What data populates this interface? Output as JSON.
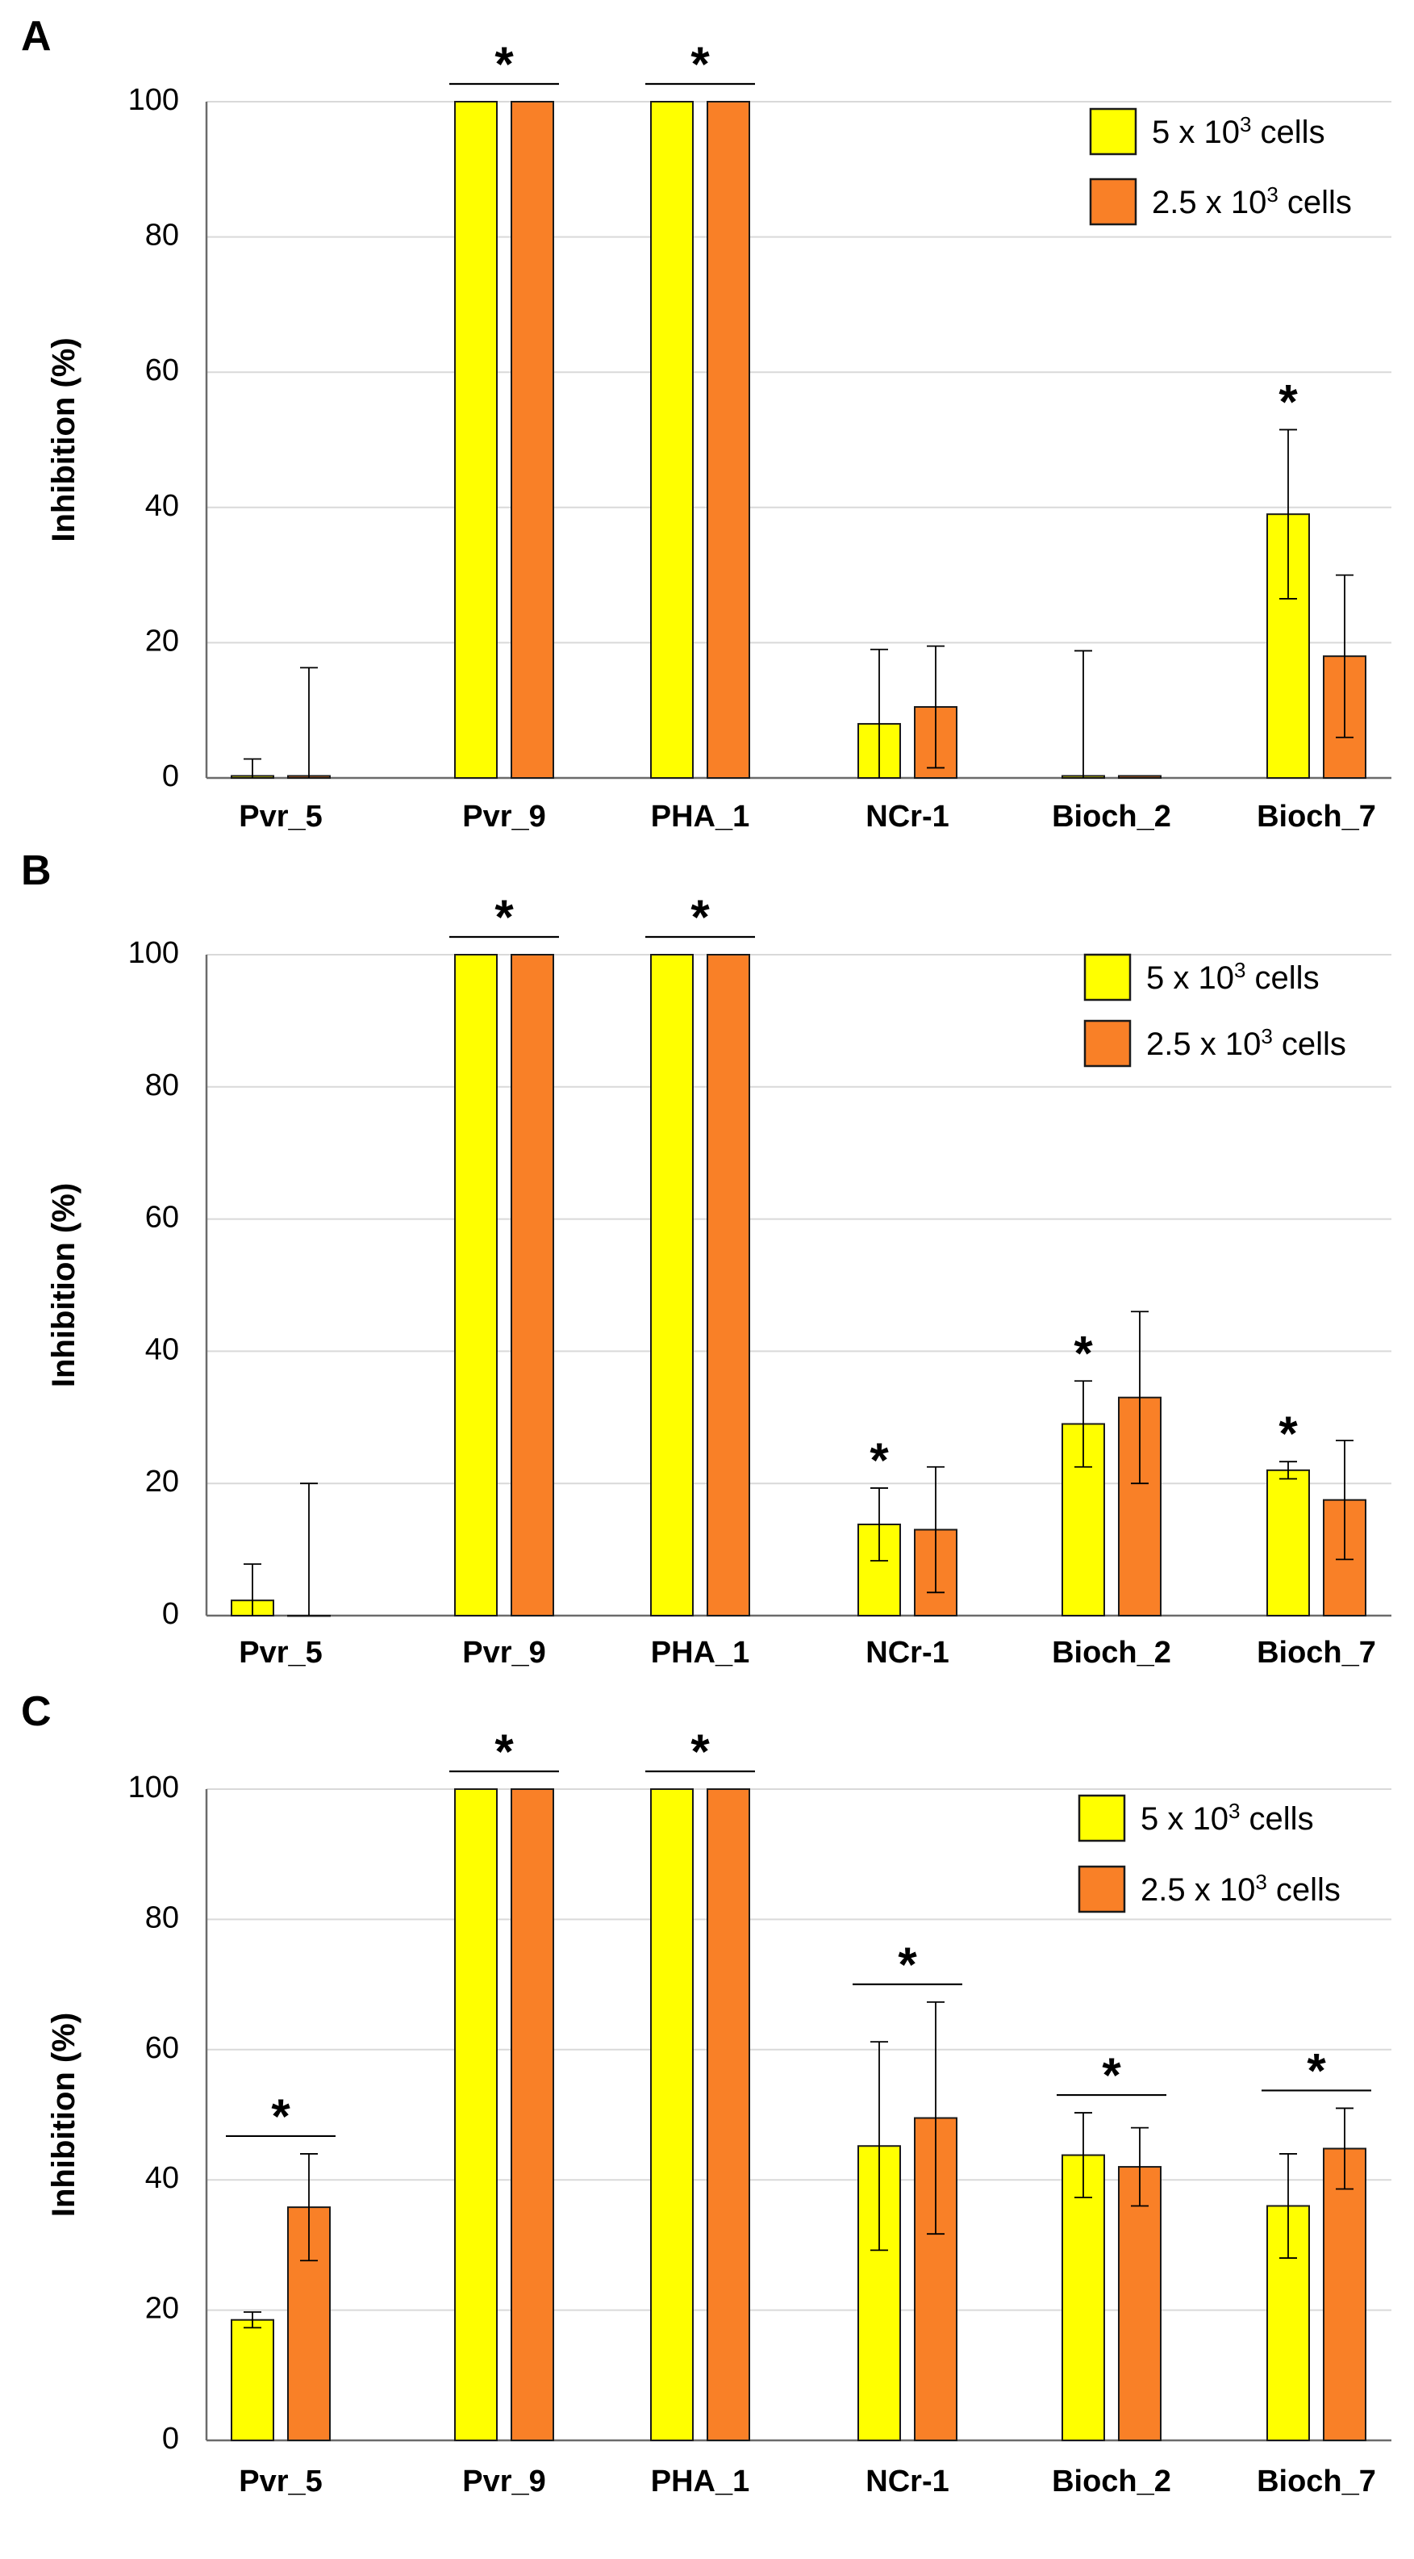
{
  "colors": {
    "series_1": "#ffff00",
    "series_2": "#f98027",
    "bar_outline": "#1a1a1a",
    "error_bar": "#000000",
    "grid": "#d9d9d9"
  },
  "significance_symbol": "*",
  "chart_data": [
    {
      "type": "bar",
      "panel": "A",
      "ylabel": "Inhibition (%)",
      "ylim": [
        0,
        100
      ],
      "yticks": [
        0,
        20,
        40,
        60,
        80,
        100
      ],
      "grid": true,
      "legend_position": "top-right",
      "categories": [
        "Pvr_5",
        "Pvr_9",
        "PHA_1",
        "NCr-1",
        "Bioch_2",
        "Bioch_7"
      ],
      "series": [
        {
          "name": "5 x 10³ cells",
          "values": [
            0.3,
            100,
            100,
            8,
            0.3,
            39
          ],
          "error": [
            2.5,
            0,
            0,
            11,
            18.5,
            12.5
          ]
        },
        {
          "name": "2.5 x 10³ cells",
          "values": [
            0.3,
            100,
            100,
            10.5,
            0.3,
            18
          ],
          "error": [
            16,
            0,
            0,
            9,
            0,
            12
          ]
        }
      ],
      "significance": [
        {
          "category": "Pvr_9",
          "span": "both"
        },
        {
          "category": "PHA_1",
          "span": "both"
        },
        {
          "category": "Bioch_7",
          "span": "series_1"
        }
      ]
    },
    {
      "type": "bar",
      "panel": "B",
      "ylabel": "Inhibition (%)",
      "ylim": [
        0,
        100
      ],
      "yticks": [
        0,
        20,
        40,
        60,
        80,
        100
      ],
      "grid": true,
      "legend_position": "top-right",
      "categories": [
        "Pvr_5",
        "Pvr_9",
        "PHA_1",
        "NCr-1",
        "Bioch_2",
        "Bioch_7"
      ],
      "series": [
        {
          "name": "5 x 10³ cells",
          "values": [
            2.3,
            100,
            100,
            13.8,
            29,
            22
          ],
          "error": [
            5.5,
            0,
            0,
            5.5,
            6.5,
            1.3
          ]
        },
        {
          "name": "2.5 x 10³ cells",
          "values": [
            0,
            100,
            100,
            13,
            33,
            17.5
          ],
          "error": [
            20,
            0,
            0,
            9.5,
            13,
            9
          ]
        }
      ],
      "significance": [
        {
          "category": "Pvr_9",
          "span": "both"
        },
        {
          "category": "PHA_1",
          "span": "both"
        },
        {
          "category": "NCr-1",
          "span": "series_1"
        },
        {
          "category": "Bioch_2",
          "span": "series_1"
        },
        {
          "category": "Bioch_7",
          "span": "series_1"
        }
      ]
    },
    {
      "type": "bar",
      "panel": "C",
      "ylabel": "Inhibition (%)",
      "ylim": [
        0,
        100
      ],
      "yticks": [
        0,
        20,
        40,
        60,
        80,
        100
      ],
      "grid": true,
      "legend_position": "top-right",
      "categories": [
        "Pvr_5",
        "Pvr_9",
        "PHA_1",
        "NCr-1",
        "Bioch_2",
        "Bioch_7"
      ],
      "series": [
        {
          "name": "5 x 10³ cells",
          "values": [
            18.5,
            100,
            100,
            45.2,
            43.8,
            36
          ],
          "error": [
            1.2,
            0,
            0,
            16,
            6.5,
            8
          ]
        },
        {
          "name": "2.5 x 10³ cells",
          "values": [
            35.8,
            100,
            100,
            49.5,
            42,
            44.8
          ],
          "error": [
            8.2,
            0,
            0,
            17.8,
            6,
            6.2
          ]
        }
      ],
      "significance": [
        {
          "category": "Pvr_5",
          "span": "both"
        },
        {
          "category": "Pvr_9",
          "span": "both"
        },
        {
          "category": "PHA_1",
          "span": "both"
        },
        {
          "category": "NCr-1",
          "span": "both"
        },
        {
          "category": "Bioch_2",
          "span": "both"
        },
        {
          "category": "Bioch_7",
          "span": "both"
        }
      ]
    }
  ]
}
